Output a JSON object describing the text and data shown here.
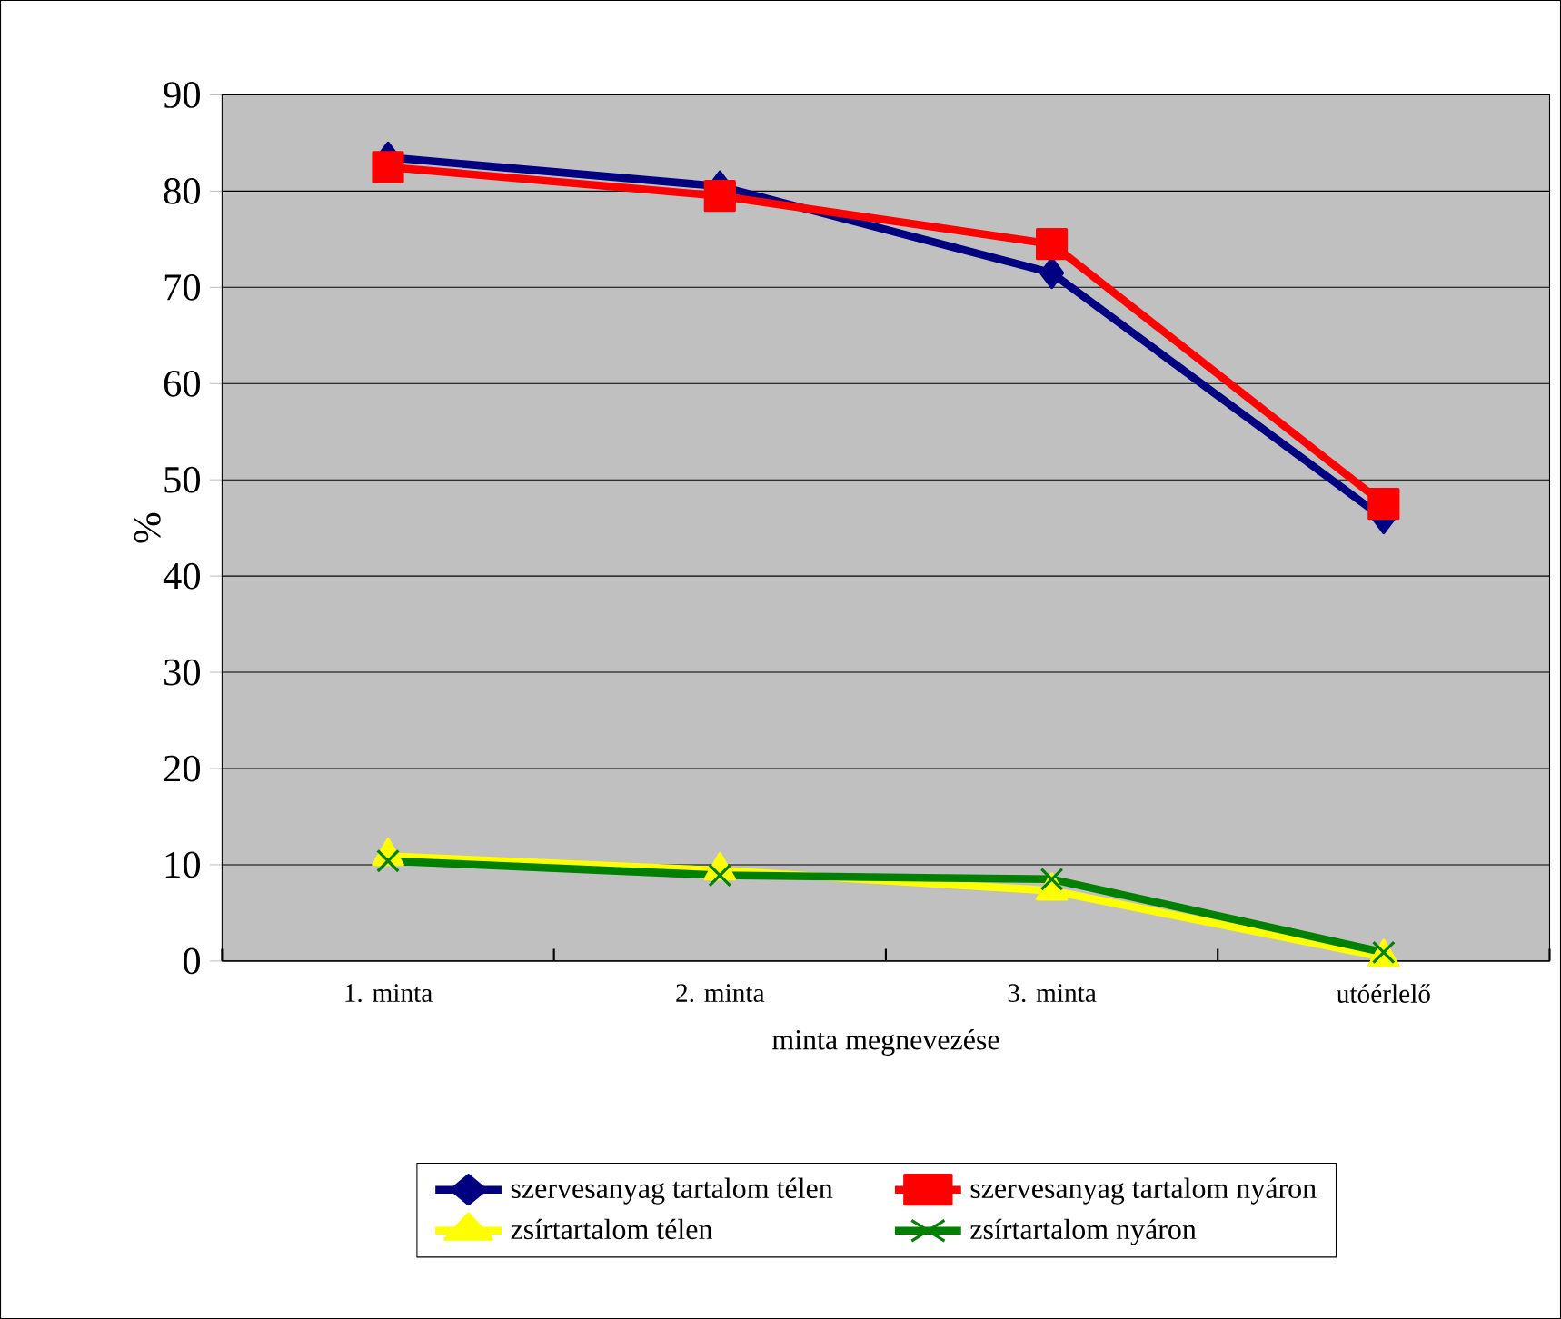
{
  "chart_data": {
    "type": "line",
    "xlabel": "minta megnevezése",
    "ylabel": "%",
    "categories": [
      "1. minta",
      "2. minta",
      "3. minta",
      "utóérlelő"
    ],
    "series": [
      {
        "name": "szervesanyag tartalom télen",
        "color": "#000080",
        "marker": "diamond",
        "values": [
          83.5,
          80.5,
          71.5,
          46
        ]
      },
      {
        "name": "szervesanyag tartalom nyáron",
        "color": "#ff0000",
        "marker": "square",
        "values": [
          82.5,
          79.5,
          74.5,
          47.5
        ]
      },
      {
        "name": "zsírtartalom télen",
        "color": "#ffff00",
        "marker": "triangle",
        "values": [
          10.9,
          9.4,
          7.3,
          0.4
        ]
      },
      {
        "name": "zsírtartalom nyáron",
        "color": "#008000",
        "marker": "cross",
        "values": [
          10.4,
          8.9,
          8.5,
          0.9
        ]
      }
    ],
    "ylim": [
      0,
      90
    ],
    "yticks": [
      0,
      10,
      20,
      30,
      40,
      50,
      60,
      70,
      80,
      90
    ],
    "grid": "y",
    "legend": "bottom"
  }
}
